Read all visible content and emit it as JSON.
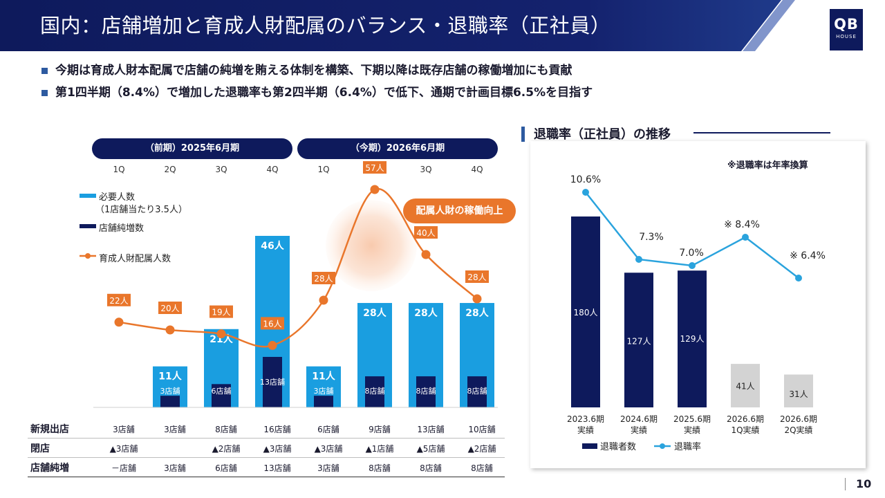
{
  "header": {
    "title": "国内：店舗増加と育成人財配属のバランス・退職率（正社員）",
    "logo_main": "QB",
    "logo_sub": "HOUSE"
  },
  "bullets": [
    "今期は育成人財本配属で店舗の純増を賄える体制を構築、下期以降は既存店舗の稼働増加にも貢献",
    "第1四半期（8.4%）で増加した退職率も第2四半期（6.4%）で低下、通期で計画目標6.5%を目指す"
  ],
  "left_chart": {
    "periods": [
      "（前期）2025年6月期",
      "（今期）2026年6月期"
    ],
    "quarters": [
      "1Q",
      "2Q",
      "3Q",
      "4Q",
      "1Q",
      "2Q",
      "3Q",
      "4Q"
    ],
    "legend": {
      "required": "必要人数",
      "required_sub": "（1店舗当たり3.5人）",
      "net": "店舗純増数",
      "assigned": "育成人財配属人数"
    },
    "callout": "配属人財の稼働向上"
  },
  "chart_data": [
    {
      "type": "bar",
      "title": "店舗増加と育成人財配属のバランス",
      "categories": [
        "1Q",
        "2Q",
        "3Q",
        "4Q",
        "1Q",
        "2Q",
        "3Q",
        "4Q"
      ],
      "series": [
        {
          "name": "必要人数",
          "values": [
            null,
            11,
            21,
            46,
            11,
            28,
            28,
            28
          ],
          "labels": [
            "",
            "11人",
            "21人",
            "46人",
            "11人",
            "28人",
            "28人",
            "28人"
          ]
        },
        {
          "name": "店舗純増数",
          "values": [
            null,
            3,
            6,
            13,
            3,
            8,
            8,
            8
          ],
          "labels": [
            "",
            "3店舗",
            "6店舗",
            "13店舗",
            "3店舗",
            "8店舗",
            "8店舗",
            "8店舗"
          ]
        },
        {
          "name": "育成人財配属人数",
          "values": [
            22,
            20,
            19,
            16,
            28,
            57,
            40,
            28
          ],
          "labels": [
            "22人",
            "20人",
            "19人",
            "16人",
            "28人",
            "57人",
            "40人",
            "28人"
          ]
        }
      ],
      "ylim": [
        0,
        60
      ]
    },
    {
      "type": "bar",
      "title": "退職率（正社員）の推移",
      "categories": [
        "2023.6期\n実績",
        "2024.6期\n実績",
        "2025.6期\n実績",
        "2026.6期\n1Q実績",
        "2026.6期\n2Q実績"
      ],
      "series": [
        {
          "name": "退職者数",
          "values": [
            180,
            127,
            129,
            41,
            31
          ],
          "labels": [
            "180人",
            "127人",
            "129人",
            "41人",
            "31人"
          ]
        },
        {
          "name": "退職率",
          "values": [
            10.6,
            7.3,
            7.0,
            8.4,
            6.4
          ],
          "labels": [
            "10.6%",
            "7.3%",
            "7.0%",
            "※ 8.4%",
            "※ 6.4%"
          ]
        }
      ],
      "ylim": [
        0,
        200
      ]
    }
  ],
  "table": {
    "rows": [
      {
        "label": "新規出店",
        "cells": [
          "3店舗",
          "3店舗",
          "8店舗",
          "16店舗",
          "6店舗",
          "9店舗",
          "13店舗",
          "10店舗"
        ]
      },
      {
        "label": "閉店",
        "cells": [
          "▲3店舗",
          "",
          "▲2店舗",
          "▲3店舗",
          "▲3店舗",
          "▲1店舗",
          "▲5店舗",
          "▲2店舗"
        ]
      },
      {
        "label": "店舗純増",
        "cells": [
          "－店舗",
          "3店舗",
          "6店舗",
          "13店舗",
          "3店舗",
          "8店舗",
          "8店舗",
          "8店舗"
        ]
      }
    ]
  },
  "right_chart": {
    "title": "退職率（正社員）の推移",
    "note": "※退職率は年率換算",
    "categories": [
      [
        "2023.6期",
        "実績"
      ],
      [
        "2024.6期",
        "実績"
      ],
      [
        "2025.6期",
        "実績"
      ],
      [
        "2026.6期",
        "1Q実績"
      ],
      [
        "2026.6期",
        "2Q実績"
      ]
    ],
    "legend_bar": "退職者数",
    "legend_line": "退職率"
  },
  "page": {
    "number": "10"
  },
  "colors": {
    "navy": "#0e1a5c",
    "sky": "#1a9ee0",
    "orange": "#e9762b",
    "gray_bar": "#d3d3d3",
    "line_blue": "#2aa3dd"
  }
}
